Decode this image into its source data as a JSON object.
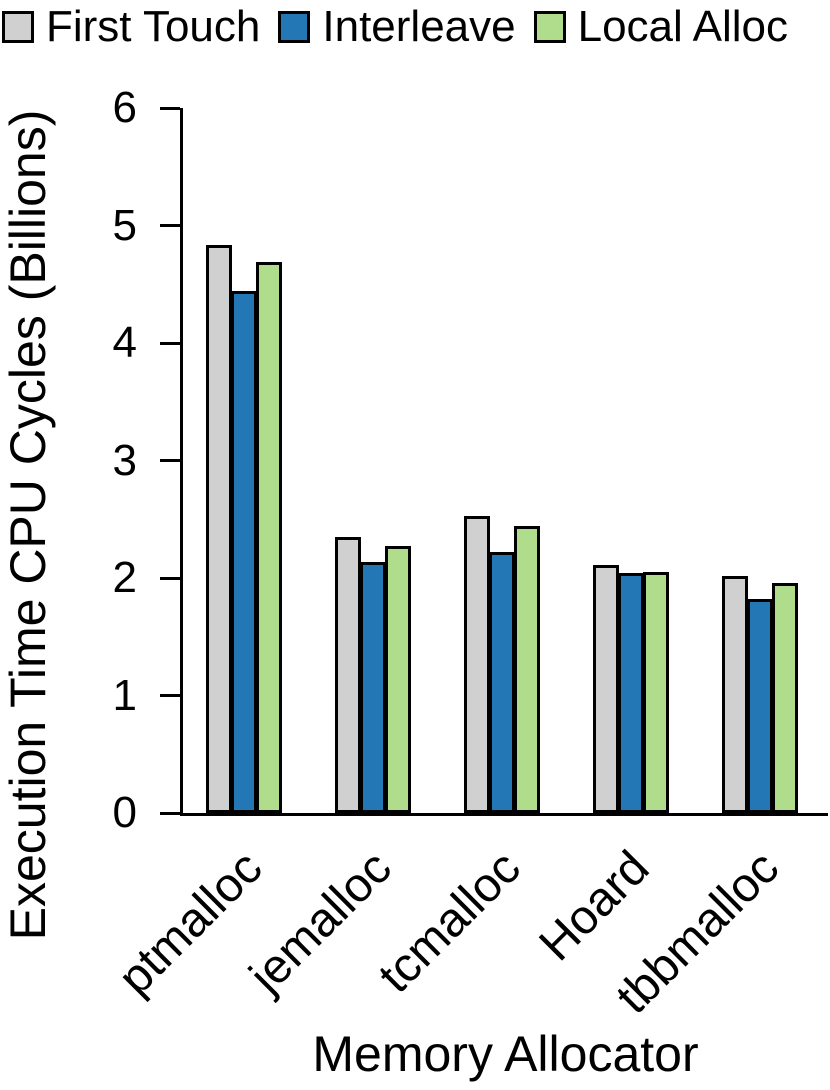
{
  "chart_data": {
    "type": "bar",
    "title": "",
    "xlabel": "Memory Allocator",
    "ylabel": "Execution Time CPU Cycles (Billions)",
    "categories": [
      "ptmalloc",
      "jemalloc",
      "tcmalloc",
      "Hoard",
      "tbbmalloc"
    ],
    "series": [
      {
        "name": "First Touch",
        "color": "#d0d0d0",
        "values": [
          4.83,
          2.35,
          2.53,
          2.11,
          2.02
        ]
      },
      {
        "name": "Interleave",
        "color": "#2277b4",
        "values": [
          4.44,
          2.14,
          2.22,
          2.04,
          1.82
        ]
      },
      {
        "name": "Local Alloc",
        "color": "#b0dd8b",
        "values": [
          4.69,
          2.27,
          2.44,
          2.05,
          1.96
        ]
      }
    ],
    "ylim": [
      0,
      6
    ],
    "yticks": [
      0,
      1,
      2,
      3,
      4,
      5,
      6
    ],
    "grid": false,
    "legend_position": "top",
    "bar_border_color": "#000000",
    "axis_color": "#000000"
  }
}
